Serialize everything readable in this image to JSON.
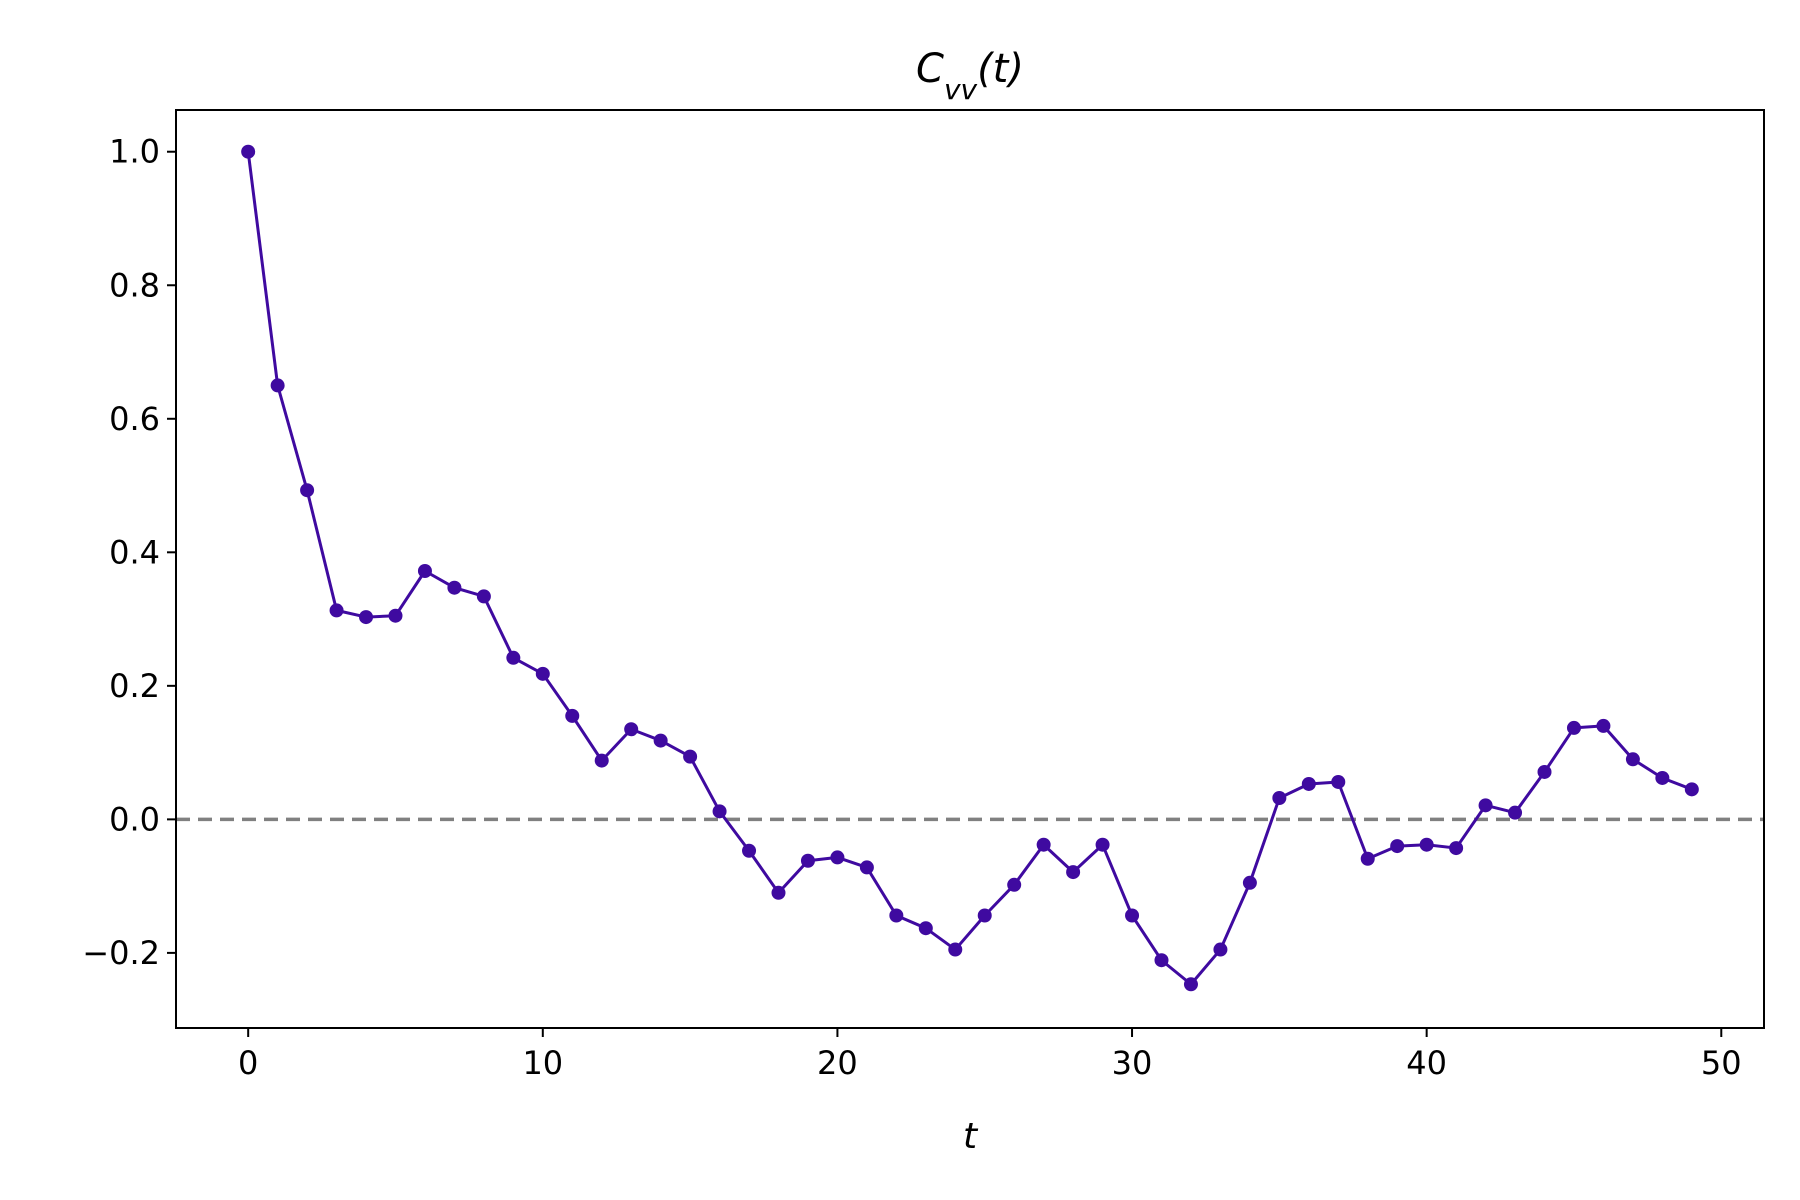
{
  "chart_data": {
    "type": "line",
    "title": "C",
    "title_subscript": "vv",
    "title_suffix": "(t)",
    "xlabel": "t",
    "ylabel": "",
    "xlim": [
      -2.45,
      51.45
    ],
    "ylim": [
      -0.3125,
      1.0625
    ],
    "xticks": [
      0,
      10,
      20,
      30,
      40,
      50
    ],
    "xtick_labels": [
      "0",
      "10",
      "20",
      "30",
      "40",
      "50"
    ],
    "yticks": [
      -0.2,
      0.0,
      0.2,
      0.4,
      0.6,
      0.8,
      1.0
    ],
    "ytick_labels": [
      "−0.2",
      "0.0",
      "0.2",
      "0.4",
      "0.6",
      "0.8",
      "1.0"
    ],
    "grid": false,
    "legend": "none",
    "reference_line": {
      "y": 0.0,
      "style": "dashed",
      "color": "#808080"
    },
    "series": [
      {
        "color": "#3f0aa0",
        "marker": "circle",
        "x": [
          0,
          1,
          2,
          3,
          4,
          5,
          6,
          7,
          8,
          9,
          10,
          11,
          12,
          13,
          14,
          15,
          16,
          17,
          18,
          19,
          20,
          21,
          22,
          23,
          24,
          25,
          26,
          27,
          28,
          29,
          30,
          31,
          32,
          33,
          34,
          35,
          36,
          37,
          38,
          39,
          40,
          41,
          42,
          43,
          44,
          45,
          46,
          47,
          48,
          49
        ],
        "y": [
          1.0,
          0.65,
          0.493,
          0.313,
          0.303,
          0.305,
          0.372,
          0.347,
          0.334,
          0.242,
          0.218,
          0.155,
          0.088,
          0.135,
          0.118,
          0.094,
          0.012,
          -0.047,
          -0.11,
          -0.062,
          -0.057,
          -0.072,
          -0.144,
          -0.163,
          -0.195,
          -0.144,
          -0.098,
          -0.038,
          -0.079,
          -0.038,
          -0.144,
          -0.211,
          -0.247,
          -0.195,
          -0.095,
          0.032,
          0.053,
          0.056,
          -0.059,
          -0.04,
          -0.038,
          -0.043,
          0.021,
          0.01,
          0.071,
          0.137,
          0.14,
          0.09,
          0.062,
          0.045
        ]
      }
    ]
  }
}
